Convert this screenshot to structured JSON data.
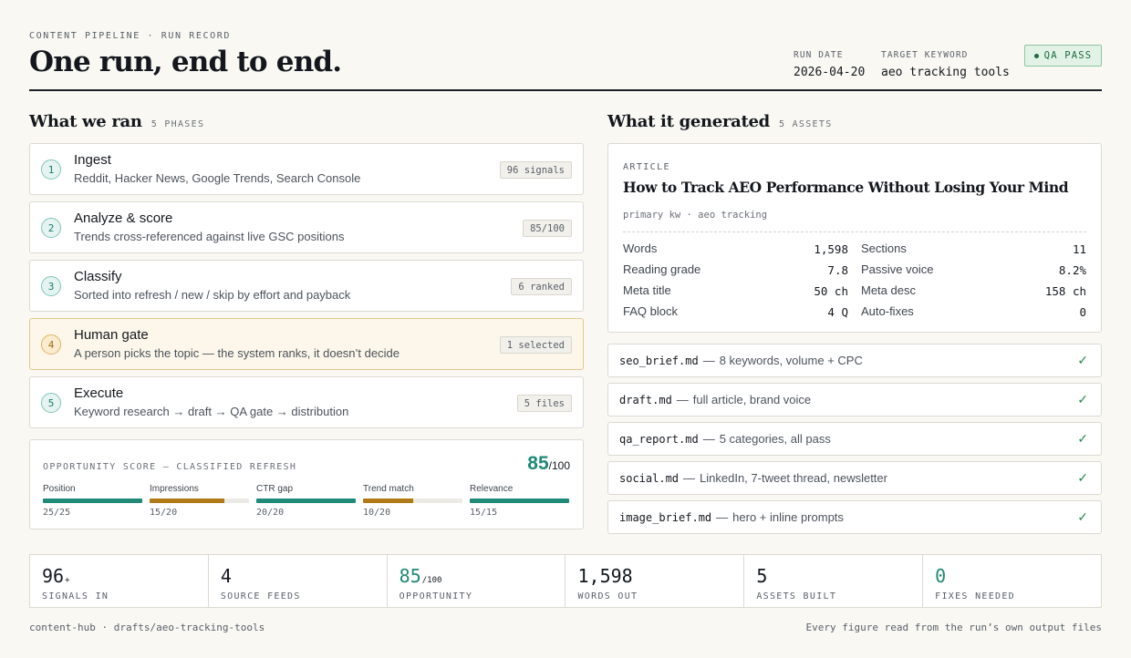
{
  "header": {
    "eyebrow": "CONTENT PIPELINE  ·  RUN RECORD",
    "title": "One run, end to end.",
    "run_date_label": "RUN DATE",
    "run_date": "2026-04-20",
    "target_kw_label": "TARGET KEYWORD",
    "target_kw": "aeo tracking tools",
    "qa_status": "QA PASS"
  },
  "left": {
    "title": "What we ran",
    "count": "5 PHASES",
    "phases": [
      {
        "num": "1",
        "name": "Ingest",
        "desc": "Reddit, Hacker News, Google Trends, Search Console",
        "pill": "96 signals"
      },
      {
        "num": "2",
        "name": "Analyze & score",
        "desc": "Trends cross-referenced against live GSC positions",
        "pill": "85/100"
      },
      {
        "num": "3",
        "name": "Classify",
        "desc": "Sorted into refresh / new / skip by effort and payback",
        "pill": "6 ranked"
      },
      {
        "num": "4",
        "name": "Human gate",
        "desc": "A person picks the topic — the system ranks, it doesn’t decide",
        "pill": "1 selected"
      },
      {
        "num": "5",
        "name": "Execute",
        "desc": "Keyword research → draft → QA gate → distribution",
        "pill": "5 files"
      }
    ],
    "score": {
      "label": "OPPORTUNITY SCORE — CLASSIFIED REFRESH",
      "value": "85",
      "of": "/100",
      "metrics": [
        {
          "label": "Position",
          "value": "25/25",
          "fraction": 1.0,
          "tone": "good"
        },
        {
          "label": "Impressions",
          "value": "15/20",
          "fraction": 0.75,
          "tone": "warn"
        },
        {
          "label": "CTR gap",
          "value": "20/20",
          "fraction": 1.0,
          "tone": "good"
        },
        {
          "label": "Trend match",
          "value": "10/20",
          "fraction": 0.5,
          "tone": "warn"
        },
        {
          "label": "Relevance",
          "value": "15/15",
          "fraction": 1.0,
          "tone": "good"
        }
      ]
    }
  },
  "right": {
    "title": "What it generated",
    "count": "5 ASSETS",
    "article": {
      "type": "ARTICLE",
      "headline": "How to Track AEO Performance Without Losing Your Mind",
      "kw_line": "primary kw · aeo tracking",
      "stats": [
        {
          "label": "Words",
          "value": "1,598"
        },
        {
          "label": "Sections",
          "value": "11"
        },
        {
          "label": "Reading grade",
          "value": "7.8"
        },
        {
          "label": "Passive voice",
          "value": "8.2%"
        },
        {
          "label": "Meta title",
          "value": "50 ch"
        },
        {
          "label": "Meta desc",
          "value": "158 ch"
        },
        {
          "label": "FAQ block",
          "value": "4 Q"
        },
        {
          "label": "Auto-fixes",
          "value": "0"
        }
      ]
    },
    "files": [
      {
        "name": "seo_brief.md",
        "desc": "8 keywords, volume + CPC"
      },
      {
        "name": "draft.md",
        "desc": "full article, brand voice"
      },
      {
        "name": "qa_report.md",
        "desc": "5 categories, all pass"
      },
      {
        "name": "social.md",
        "desc": "LinkedIn, 7-tweet thread, newsletter"
      },
      {
        "name": "image_brief.md",
        "desc": "hero + inline prompts"
      }
    ],
    "sep": "—",
    "check": "✓"
  },
  "stats": [
    {
      "value": "96",
      "suffix": "+",
      "label": "SIGNALS IN",
      "accent": false
    },
    {
      "value": "4",
      "suffix": "",
      "label": "SOURCE FEEDS",
      "accent": false
    },
    {
      "value": "85",
      "suffix": "/100",
      "label": "OPPORTUNITY",
      "accent": true
    },
    {
      "value": "1,598",
      "suffix": "",
      "label": "WORDS OUT",
      "accent": false
    },
    {
      "value": "5",
      "suffix": "",
      "label": "ASSETS BUILT",
      "accent": false
    },
    {
      "value": "0",
      "suffix": "",
      "label": "FIXES NEEDED",
      "accent": true
    }
  ],
  "footer": {
    "path": "content-hub · drafts/aeo-tracking-tools",
    "note": "Every figure read from the run’s own output files"
  },
  "colors": {
    "accent": "#1f8a78",
    "warn": "#b07a16",
    "pass": "#1b6b3f",
    "ink": "#14181e",
    "paper": "#f9f8f3"
  }
}
